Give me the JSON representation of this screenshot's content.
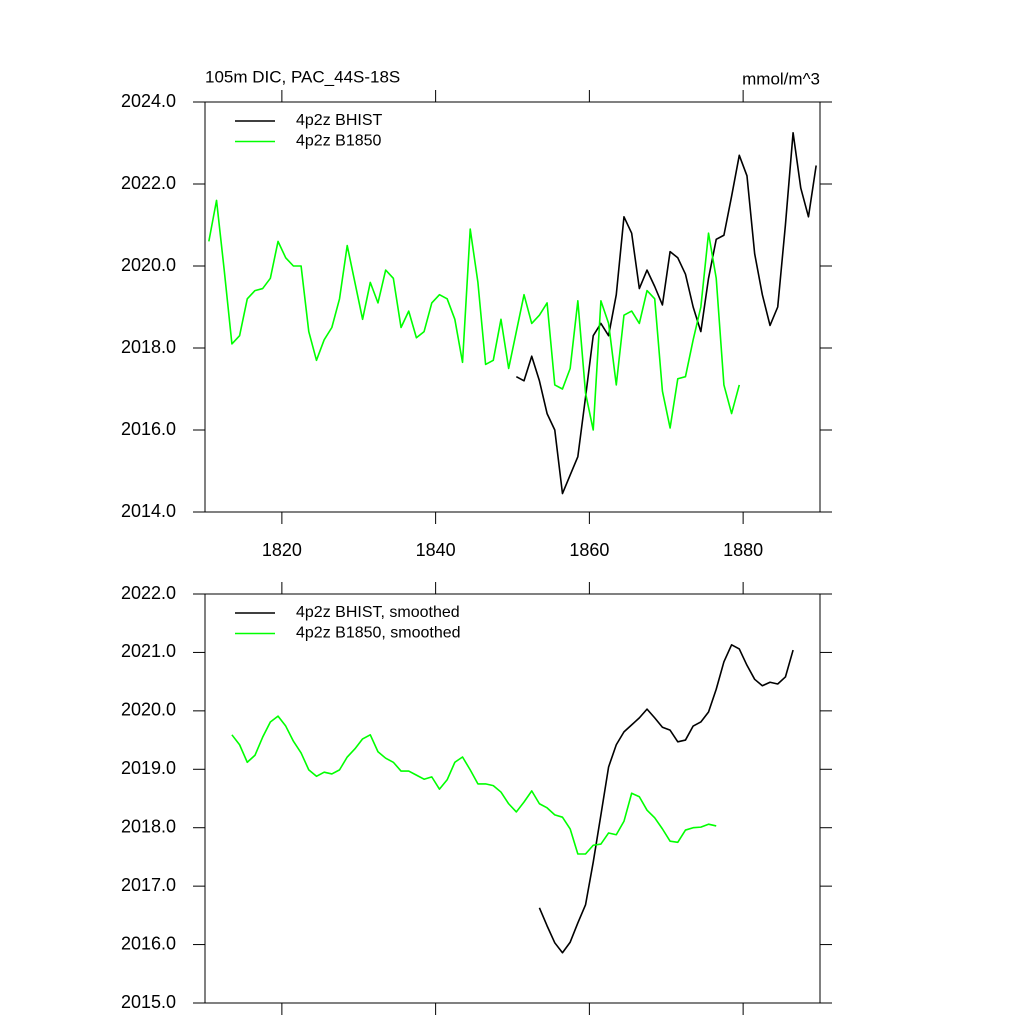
{
  "chart_data": [
    {
      "type": "line",
      "title": "105m DIC, PAC_44S-18S",
      "units": "mmol/m^3",
      "legend": "upper left",
      "xlim": [
        1810,
        1890
      ],
      "xticks": [
        1820,
        1840,
        1860,
        1880
      ],
      "ylim": [
        2014,
        2024
      ],
      "yticks": [
        {
          "value": 2014,
          "label": "2014.0"
        },
        {
          "value": 2016,
          "label": "2016.0"
        },
        {
          "value": 2018,
          "label": "2018.0"
        },
        {
          "value": 2020,
          "label": "2020.0"
        },
        {
          "value": 2022,
          "label": "2022.0"
        },
        {
          "value": 2024,
          "label": "2024.0"
        }
      ],
      "series": [
        {
          "name": "4p2z BHIST",
          "color": "#000000",
          "x": [
            1850.5,
            1851.5,
            1852.5,
            1853.5,
            1854.5,
            1855.5,
            1856.5,
            1857.5,
            1858.5,
            1859.5,
            1860.5,
            1861.5,
            1862.5,
            1863.5,
            1864.5,
            1865.5,
            1866.5,
            1867.5,
            1868.5,
            1869.5,
            1870.5,
            1871.5,
            1872.5,
            1873.5,
            1874.5,
            1875.5,
            1876.5,
            1877.5,
            1878.5,
            1879.5,
            1880.5,
            1881.5,
            1882.5,
            1883.5,
            1884.5,
            1885.5,
            1886.5,
            1887.5,
            1888.5,
            1889.5
          ],
          "values": [
            2017.3,
            2017.2,
            2017.8,
            2017.2,
            2016.4,
            2016.0,
            2014.45,
            2014.9,
            2015.35,
            2016.8,
            2018.3,
            2018.6,
            2018.3,
            2019.3,
            2021.2,
            2020.8,
            2019.45,
            2019.9,
            2019.5,
            2019.05,
            2020.35,
            2020.2,
            2019.8,
            2019.0,
            2018.4,
            2019.7,
            2020.65,
            2020.75,
            2021.7,
            2022.7,
            2022.2,
            2020.3,
            2019.3,
            2018.55,
            2019.0,
            2021.0,
            2023.25,
            2021.9,
            2021.2,
            2022.45
          ]
        },
        {
          "name": "4p2z B1850",
          "color": "#00ff00",
          "x": [
            1810.5,
            1811.5,
            1812.5,
            1813.5,
            1814.5,
            1815.5,
            1816.5,
            1817.5,
            1818.5,
            1819.5,
            1820.5,
            1821.5,
            1822.5,
            1823.5,
            1824.5,
            1825.5,
            1826.5,
            1827.5,
            1828.5,
            1829.5,
            1830.5,
            1831.5,
            1832.5,
            1833.5,
            1834.5,
            1835.5,
            1836.5,
            1837.5,
            1838.5,
            1839.5,
            1840.5,
            1841.5,
            1842.5,
            1843.5,
            1844.5,
            1845.5,
            1846.5,
            1847.5,
            1848.5,
            1849.5,
            1850.5,
            1851.5,
            1852.5,
            1853.5,
            1854.5,
            1855.5,
            1856.5,
            1857.5,
            1858.5,
            1859.5,
            1860.5,
            1861.5,
            1862.5,
            1863.5,
            1864.5,
            1865.5,
            1866.5,
            1867.5,
            1868.5,
            1869.5,
            1870.5,
            1871.5,
            1872.5,
            1873.5,
            1874.5,
            1875.5,
            1876.5,
            1877.5,
            1878.5,
            1879.5
          ],
          "values": [
            2020.6,
            2021.6,
            2019.9,
            2018.1,
            2018.3,
            2019.2,
            2019.4,
            2019.45,
            2019.7,
            2020.6,
            2020.2,
            2020.0,
            2020.0,
            2018.4,
            2017.7,
            2018.2,
            2018.5,
            2019.2,
            2020.5,
            2019.6,
            2018.7,
            2019.6,
            2019.1,
            2019.9,
            2019.7,
            2018.5,
            2018.9,
            2018.25,
            2018.4,
            2019.1,
            2019.3,
            2019.2,
            2018.7,
            2017.65,
            2020.9,
            2019.6,
            2017.6,
            2017.7,
            2018.7,
            2017.5,
            2018.4,
            2019.3,
            2018.6,
            2018.8,
            2019.1,
            2017.1,
            2017.0,
            2017.5,
            2019.15,
            2016.9,
            2016.0,
            2019.15,
            2018.6,
            2017.1,
            2018.8,
            2018.9,
            2018.6,
            2019.4,
            2019.2,
            2016.95,
            2016.05,
            2017.25,
            2017.3,
            2018.2,
            2019.0,
            2020.8,
            2019.7,
            2017.1,
            2016.4,
            2017.1
          ]
        }
      ]
    },
    {
      "type": "line",
      "legend": "upper left",
      "xlim": [
        1810,
        1890
      ],
      "xticks": [
        1820,
        1840,
        1860,
        1880
      ],
      "ylim": [
        2015,
        2022
      ],
      "yticks": [
        {
          "value": 2015,
          "label": "2015.0"
        },
        {
          "value": 2016,
          "label": "2016.0"
        },
        {
          "value": 2017,
          "label": "2017.0"
        },
        {
          "value": 2018,
          "label": "2018.0"
        },
        {
          "value": 2019,
          "label": "2019.0"
        },
        {
          "value": 2020,
          "label": "2020.0"
        },
        {
          "value": 2021,
          "label": "2021.0"
        },
        {
          "value": 2022,
          "label": "2022.0"
        }
      ],
      "series": [
        {
          "name": "4p2z BHIST, smoothed",
          "color": "#000000",
          "x": [
            1853.5,
            1854.5,
            1855.5,
            1856.5,
            1857.5,
            1858.5,
            1859.5,
            1860.5,
            1861.5,
            1862.5,
            1863.5,
            1864.5,
            1865.5,
            1866.5,
            1867.5,
            1868.5,
            1869.5,
            1870.5,
            1871.5,
            1872.5,
            1873.5,
            1874.5,
            1875.5,
            1876.5,
            1877.5,
            1878.5,
            1879.5,
            1880.5,
            1881.5,
            1882.5,
            1883.5,
            1884.5,
            1885.5,
            1886.5
          ],
          "values": [
            2016.63,
            2016.32,
            2016.03,
            2015.86,
            2016.04,
            2016.37,
            2016.68,
            2017.41,
            2018.22,
            2019.04,
            2019.42,
            2019.64,
            2019.76,
            2019.88,
            2020.03,
            2019.88,
            2019.72,
            2019.67,
            2019.47,
            2019.5,
            2019.74,
            2019.81,
            2019.98,
            2020.37,
            2020.84,
            2021.13,
            2021.06,
            2020.78,
            2020.54,
            2020.43,
            2020.49,
            2020.46,
            2020.58,
            2021.04
          ]
        },
        {
          "name": "4p2z B1850, smoothed",
          "color": "#00ff00",
          "x": [
            1813.5,
            1814.5,
            1815.5,
            1816.5,
            1817.5,
            1818.5,
            1819.5,
            1820.5,
            1821.5,
            1822.5,
            1823.5,
            1824.5,
            1825.5,
            1826.5,
            1827.5,
            1828.5,
            1829.5,
            1830.5,
            1831.5,
            1832.5,
            1833.5,
            1834.5,
            1835.5,
            1836.5,
            1837.5,
            1838.5,
            1839.5,
            1840.5,
            1841.5,
            1842.5,
            1843.5,
            1844.5,
            1845.5,
            1846.5,
            1847.5,
            1848.5,
            1849.5,
            1850.5,
            1851.5,
            1852.5,
            1853.5,
            1854.5,
            1855.5,
            1856.5,
            1857.5,
            1858.5,
            1859.5,
            1860.5,
            1861.5,
            1862.5,
            1863.5,
            1864.5,
            1865.5,
            1866.5,
            1867.5,
            1868.5,
            1869.5,
            1870.5,
            1871.5,
            1872.5,
            1873.5,
            1874.5,
            1875.5,
            1876.5
          ],
          "values": [
            2019.59,
            2019.42,
            2019.12,
            2019.24,
            2019.55,
            2019.81,
            2019.91,
            2019.74,
            2019.48,
            2019.28,
            2018.99,
            2018.88,
            2018.95,
            2018.92,
            2018.99,
            2019.21,
            2019.35,
            2019.52,
            2019.59,
            2019.3,
            2019.19,
            2019.12,
            2018.97,
            2018.97,
            2018.9,
            2018.83,
            2018.87,
            2018.66,
            2018.82,
            2019.12,
            2019.21,
            2018.99,
            2018.75,
            2018.75,
            2018.72,
            2018.61,
            2018.41,
            2018.27,
            2018.44,
            2018.63,
            2018.41,
            2018.34,
            2018.22,
            2018.18,
            2017.98,
            2017.55,
            2017.55,
            2017.7,
            2017.72,
            2017.91,
            2017.88,
            2018.11,
            2018.59,
            2018.53,
            2018.3,
            2018.17,
            2017.98,
            2017.77,
            2017.75,
            2017.96,
            2018.0,
            2018.01,
            2018.06,
            2018.03
          ]
        }
      ]
    }
  ]
}
